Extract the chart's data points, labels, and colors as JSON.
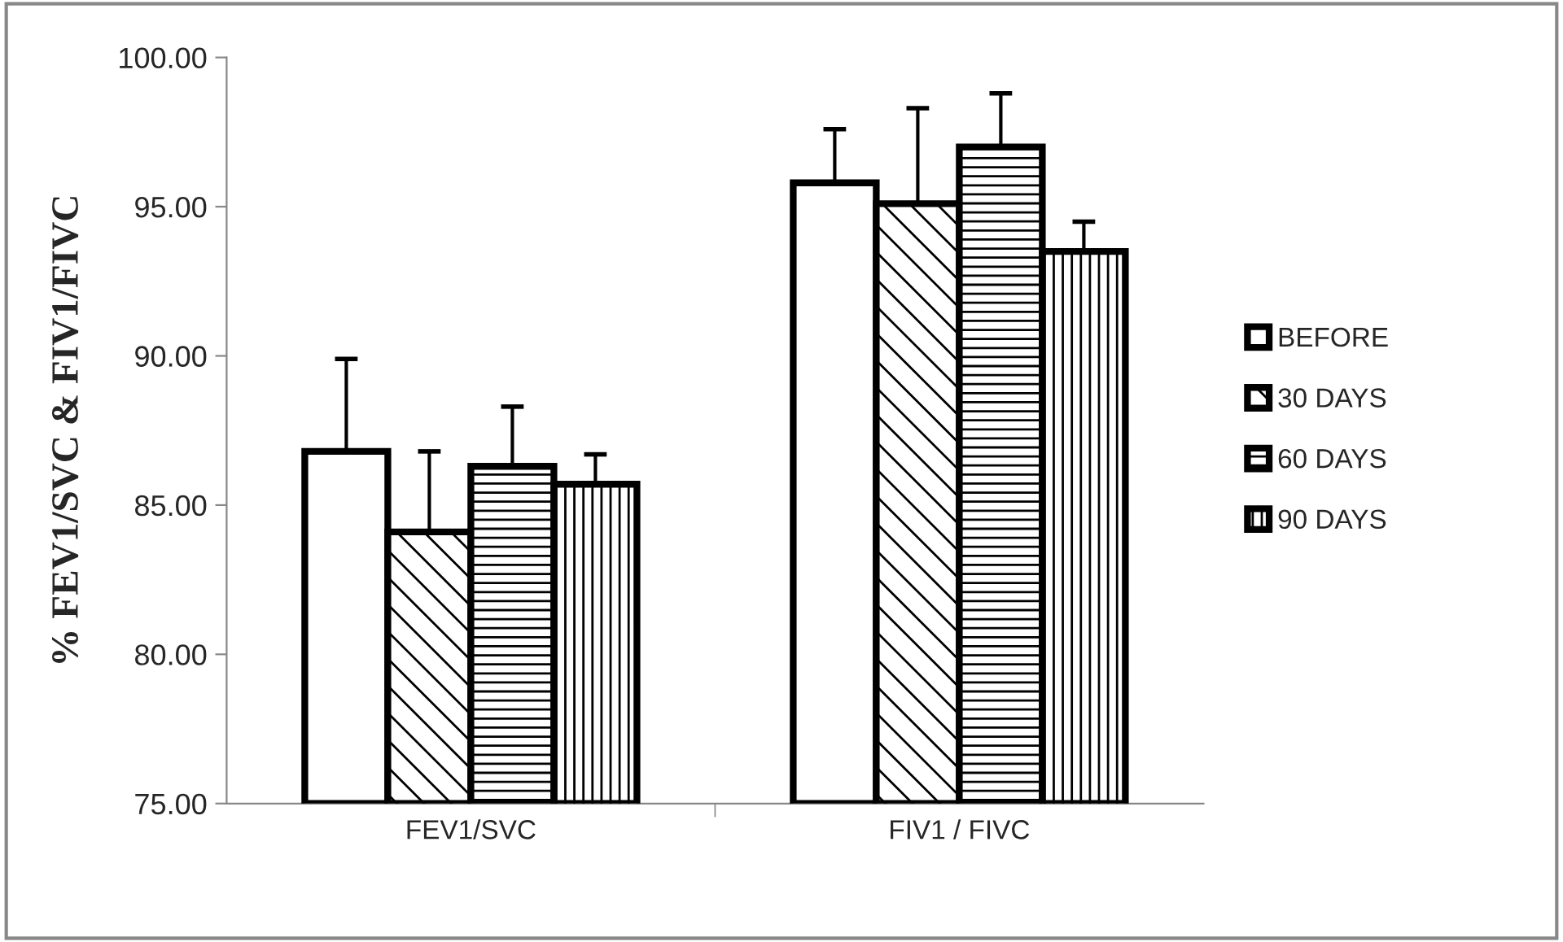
{
  "chart_data": {
    "type": "bar",
    "ylabel": "% FEV1/SVC & FIV1/FIVC",
    "categories": [
      "FEV1/SVC",
      "FIV1 / FIVC"
    ],
    "series": [
      {
        "name": "BEFORE",
        "color": "#ffffff",
        "values": [
          86.8,
          95.8
        ],
        "errors": [
          [
            86.8,
            89.9
          ],
          [
            95.8,
            97.6
          ]
        ]
      },
      {
        "name": "30 DAYS",
        "color": "#000000",
        "values": [
          84.1,
          95.1
        ],
        "errors": [
          [
            84.1,
            86.8
          ],
          [
            95.1,
            98.3
          ]
        ]
      },
      {
        "name": "60 DAYS",
        "color": "#000000",
        "values": [
          86.3,
          97.0
        ],
        "errors": [
          [
            86.3,
            88.3
          ],
          [
            97.0,
            98.8
          ]
        ]
      },
      {
        "name": "90 DAYS",
        "color": "#000000",
        "values": [
          85.7,
          93.5
        ],
        "errors": [
          [
            85.7,
            86.7
          ],
          [
            93.5,
            94.5
          ]
        ]
      }
    ],
    "ylim": [
      75,
      100
    ],
    "yticks": [
      {
        "value": 75,
        "label": "75.00"
      },
      {
        "value": 80,
        "label": "80.00"
      },
      {
        "value": 85,
        "label": "85.00"
      },
      {
        "value": 90,
        "label": "90.00"
      },
      {
        "value": 95,
        "label": "95.00"
      },
      {
        "value": 100,
        "label": "100.00"
      }
    ],
    "grid": false,
    "legend": "right"
  }
}
